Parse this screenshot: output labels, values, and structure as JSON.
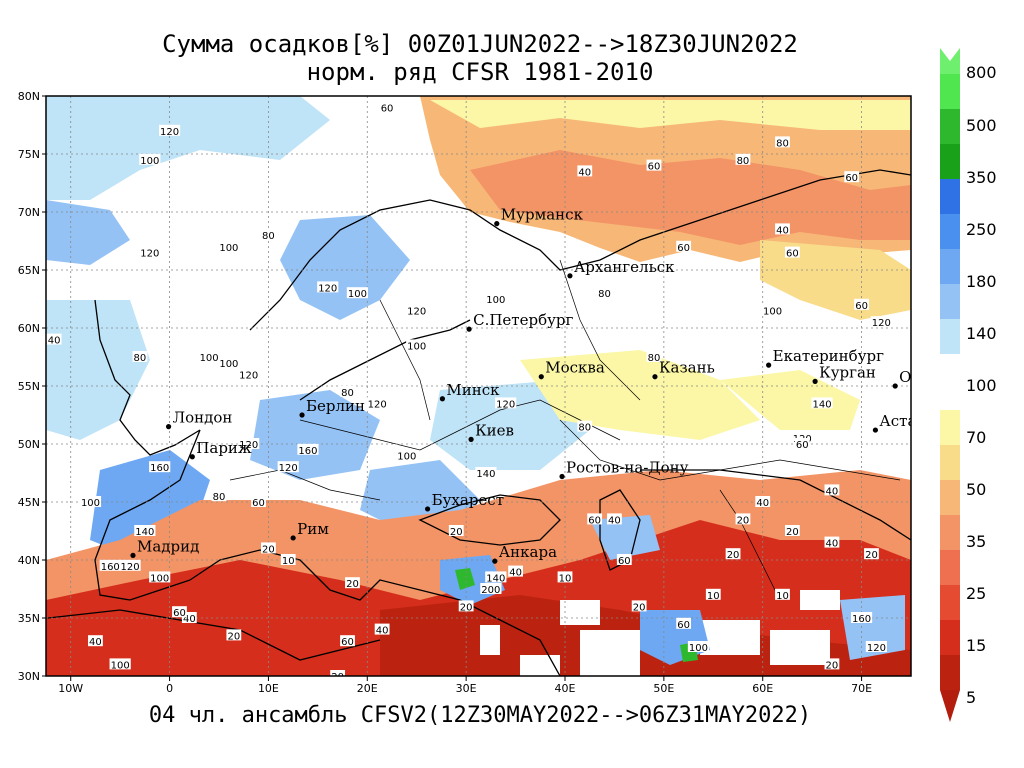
{
  "title": {
    "line1": "Сумма осадков[%] 00Z01JUN2022-->18Z30JUN2022",
    "line2": "норм. ряд CFSR 1981-2010"
  },
  "footer": "04 чл. ансамбль CFSV2(12Z30MAY2022-->06Z31MAY2022)",
  "map": {
    "lat_ticks": [
      {
        "lat": 80,
        "label": "80N"
      },
      {
        "lat": 75,
        "label": "75N"
      },
      {
        "lat": 70,
        "label": "70N"
      },
      {
        "lat": 65,
        "label": "65N"
      },
      {
        "lat": 60,
        "label": "60N"
      },
      {
        "lat": 55,
        "label": "55N"
      },
      {
        "lat": 50,
        "label": "50N"
      },
      {
        "lat": 45,
        "label": "45N"
      },
      {
        "lat": 40,
        "label": "40N"
      },
      {
        "lat": 35,
        "label": "35N"
      },
      {
        "lat": 30,
        "label": "30N"
      }
    ],
    "lon_ticks": [
      {
        "lon": -10,
        "label": "10W"
      },
      {
        "lon": 0,
        "label": "0"
      },
      {
        "lon": 10,
        "label": "10E"
      },
      {
        "lon": 20,
        "label": "20E"
      },
      {
        "lon": 30,
        "label": "30E"
      },
      {
        "lon": 40,
        "label": "40E"
      },
      {
        "lon": 50,
        "label": "50E"
      },
      {
        "lon": 60,
        "label": "60E"
      },
      {
        "lon": 70,
        "label": "70E"
      }
    ],
    "cities": [
      {
        "name": "Мурманск",
        "lon": 33.1,
        "lat": 69.0
      },
      {
        "name": "Архангельск",
        "lon": 40.5,
        "lat": 64.5
      },
      {
        "name": "С.Петербург",
        "lon": 30.3,
        "lat": 59.9
      },
      {
        "name": "Москва",
        "lon": 37.6,
        "lat": 55.8
      },
      {
        "name": "Казань",
        "lon": 49.1,
        "lat": 55.8
      },
      {
        "name": "Екатеринбург",
        "lon": 60.6,
        "lat": 56.8
      },
      {
        "name": "Курган",
        "lon": 65.3,
        "lat": 55.4
      },
      {
        "name": "Омск",
        "lon": 73.4,
        "lat": 55.0
      },
      {
        "name": "Астана",
        "lon": 71.4,
        "lat": 51.2
      },
      {
        "name": "Минск",
        "lon": 27.6,
        "lat": 53.9
      },
      {
        "name": "Киев",
        "lon": 30.5,
        "lat": 50.4
      },
      {
        "name": "Берлин",
        "lon": 13.4,
        "lat": 52.5
      },
      {
        "name": "Лондон",
        "lon": -0.1,
        "lat": 51.5
      },
      {
        "name": "Париж",
        "lon": 2.3,
        "lat": 48.9
      },
      {
        "name": "Ростов-на-Дону",
        "lon": 39.7,
        "lat": 47.2
      },
      {
        "name": "Бухарест",
        "lon": 26.1,
        "lat": 44.4
      },
      {
        "name": "Рим",
        "lon": 12.5,
        "lat": 41.9
      },
      {
        "name": "Мадрид",
        "lon": -3.7,
        "lat": 40.4
      },
      {
        "name": "Анкара",
        "lon": 32.9,
        "lat": 39.9
      }
    ],
    "contour_labels": [
      {
        "v": "60",
        "lon": 22,
        "lat": 79
      },
      {
        "v": "120",
        "lon": 0,
        "lat": 77
      },
      {
        "v": "100",
        "lon": -2,
        "lat": 74.5
      },
      {
        "v": "40",
        "lon": 42,
        "lat": 73.5
      },
      {
        "v": "60",
        "lon": 49,
        "lat": 74
      },
      {
        "v": "80",
        "lon": 62,
        "lat": 76
      },
      {
        "v": "80",
        "lon": 58,
        "lat": 74.5
      },
      {
        "v": "60",
        "lon": 69,
        "lat": 73
      },
      {
        "v": "80",
        "lon": 10,
        "lat": 68
      },
      {
        "v": "120",
        "lon": -2,
        "lat": 66.5
      },
      {
        "v": "100",
        "lon": 6,
        "lat": 67
      },
      {
        "v": "40",
        "lon": 62,
        "lat": 68.5
      },
      {
        "v": "60",
        "lon": 52,
        "lat": 67
      },
      {
        "v": "60",
        "lon": 63,
        "lat": 66.5
      },
      {
        "v": "100",
        "lon": 33,
        "lat": 62.5
      },
      {
        "v": "120",
        "lon": 16,
        "lat": 63.5
      },
      {
        "v": "100",
        "lon": 19,
        "lat": 63
      },
      {
        "v": "80",
        "lon": 44,
        "lat": 63
      },
      {
        "v": "100",
        "lon": 61,
        "lat": 61.5
      },
      {
        "v": "60",
        "lon": 70,
        "lat": 62
      },
      {
        "v": "120",
        "lon": 72,
        "lat": 60.5
      },
      {
        "v": "120",
        "lon": 25,
        "lat": 61.5
      },
      {
        "v": "140",
        "lon": -12,
        "lat": 59
      },
      {
        "v": "100",
        "lon": 25,
        "lat": 58.5
      },
      {
        "v": "80",
        "lon": -3,
        "lat": 57.5
      },
      {
        "v": "100",
        "lon": 4,
        "lat": 57.5
      },
      {
        "v": "100",
        "lon": 6,
        "lat": 57
      },
      {
        "v": "120",
        "lon": 8,
        "lat": 56
      },
      {
        "v": "80",
        "lon": 49,
        "lat": 57.5
      },
      {
        "v": "80",
        "lon": 18,
        "lat": 54.5
      },
      {
        "v": "120",
        "lon": 21,
        "lat": 53.5
      },
      {
        "v": "120",
        "lon": 34,
        "lat": 53.5
      },
      {
        "v": "140",
        "lon": 66,
        "lat": 53.5
      },
      {
        "v": "80",
        "lon": 42,
        "lat": 51.5
      },
      {
        "v": "120",
        "lon": 64,
        "lat": 50.5
      },
      {
        "v": "60",
        "lon": 64,
        "lat": 50
      },
      {
        "v": "120",
        "lon": 8,
        "lat": 50
      },
      {
        "v": "160",
        "lon": 14,
        "lat": 49.5
      },
      {
        "v": "160",
        "lon": -1,
        "lat": 48
      },
      {
        "v": "120",
        "lon": 12,
        "lat": 48
      },
      {
        "v": "100",
        "lon": 24,
        "lat": 49
      },
      {
        "v": "140",
        "lon": 32,
        "lat": 47.5
      },
      {
        "v": "100",
        "lon": -8,
        "lat": 45
      },
      {
        "v": "80",
        "lon": 5,
        "lat": 45.5
      },
      {
        "v": "60",
        "lon": 9,
        "lat": 45
      },
      {
        "v": "40",
        "lon": 60,
        "lat": 45
      },
      {
        "v": "40",
        "lon": 67,
        "lat": 46
      },
      {
        "v": "20",
        "lon": 58,
        "lat": 43.5
      },
      {
        "v": "60",
        "lon": 43,
        "lat": 43.5
      },
      {
        "v": "40",
        "lon": 45,
        "lat": 43.5
      },
      {
        "v": "20",
        "lon": 63,
        "lat": 42.5
      },
      {
        "v": "20",
        "lon": 29,
        "lat": 42.5
      },
      {
        "v": "140",
        "lon": -2.5,
        "lat": 42.5
      },
      {
        "v": "40",
        "lon": 67,
        "lat": 41.5
      },
      {
        "v": "20",
        "lon": 10,
        "lat": 41
      },
      {
        "v": "20",
        "lon": 71,
        "lat": 40.5
      },
      {
        "v": "10",
        "lon": 12,
        "lat": 40
      },
      {
        "v": "60",
        "lon": 46,
        "lat": 40
      },
      {
        "v": "20",
        "lon": 57,
        "lat": 40.5
      },
      {
        "v": "120",
        "lon": -4,
        "lat": 39.5
      },
      {
        "v": "160",
        "lon": -6,
        "lat": 39.5
      },
      {
        "v": "40",
        "lon": 35,
        "lat": 39
      },
      {
        "v": "140",
        "lon": 33,
        "lat": 38.5
      },
      {
        "v": "10",
        "lon": 40,
        "lat": 38.5
      },
      {
        "v": "100",
        "lon": -1,
        "lat": 38.5
      },
      {
        "v": "20",
        "lon": 18.5,
        "lat": 38
      },
      {
        "v": "200",
        "lon": 32.5,
        "lat": 37.5
      },
      {
        "v": "10",
        "lon": 55,
        "lat": 37
      },
      {
        "v": "10",
        "lon": 62,
        "lat": 37
      },
      {
        "v": "20",
        "lon": 47.5,
        "lat": 36
      },
      {
        "v": "40",
        "lon": 2,
        "lat": 35
      },
      {
        "v": "60",
        "lon": 1,
        "lat": 35.5
      },
      {
        "v": "20",
        "lon": 30,
        "lat": 36
      },
      {
        "v": "60",
        "lon": 52,
        "lat": 34.5
      },
      {
        "v": "20",
        "lon": 6.5,
        "lat": 33.5
      },
      {
        "v": "40",
        "lon": 21.5,
        "lat": 34
      },
      {
        "v": "60",
        "lon": 18,
        "lat": 33
      },
      {
        "v": "160",
        "lon": 70,
        "lat": 35
      },
      {
        "v": "40",
        "lon": -7.5,
        "lat": 33
      },
      {
        "v": "100",
        "lon": 53.5,
        "lat": 32.5
      },
      {
        "v": "120",
        "lon": 71.5,
        "lat": 32.5
      },
      {
        "v": "100",
        "lon": -5,
        "lat": 31
      },
      {
        "v": "20",
        "lon": 67,
        "lat": 31
      },
      {
        "v": "20",
        "lon": 17,
        "lat": 30
      }
    ]
  },
  "colorbar": {
    "levels": [
      "800",
      "500",
      "350",
      "250",
      "180",
      "140",
      "100",
      "70",
      "50",
      "35",
      "25",
      "15",
      "5"
    ],
    "colors_top": [
      "#4fe64f",
      "#2eb82e",
      "#1aa11a",
      "#2f72e6",
      "#4a90ee",
      "#6ea8f2",
      "#94c2f5",
      "#bfe3f7"
    ],
    "colors_bottom": [
      "#fbf7a6",
      "#f9dc8a",
      "#f7b877",
      "#f39466",
      "#ee7050",
      "#e54b30",
      "#d52e1c",
      "#bb2210"
    ],
    "arrow_top_color": "#6ef06e",
    "arrow_bottom_color": "#b31d0d"
  }
}
